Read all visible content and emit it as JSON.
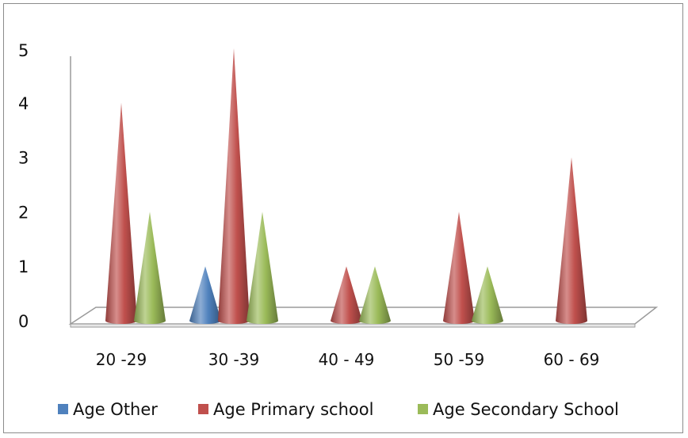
{
  "chart_data": {
    "type": "bar",
    "style": "3d-cone",
    "categories": [
      "20 -29",
      "30 -39",
      "40  - 49",
      "50 -59",
      "60 - 69"
    ],
    "series": [
      {
        "name": "Age Other",
        "color": "#4f81bd",
        "values": [
          0,
          1,
          0,
          0,
          0
        ]
      },
      {
        "name": "Age Primary school",
        "color": "#c0504d",
        "values": [
          4,
          5,
          1,
          2,
          3
        ]
      },
      {
        "name": "Age Secondary School",
        "color": "#9bbb59",
        "values": [
          2,
          2,
          1,
          1,
          0
        ]
      }
    ],
    "yticks": [
      "0",
      "1",
      "2",
      "3",
      "4",
      "5"
    ],
    "ylim": [
      0,
      5
    ],
    "grid": false,
    "legend": "bottom"
  }
}
